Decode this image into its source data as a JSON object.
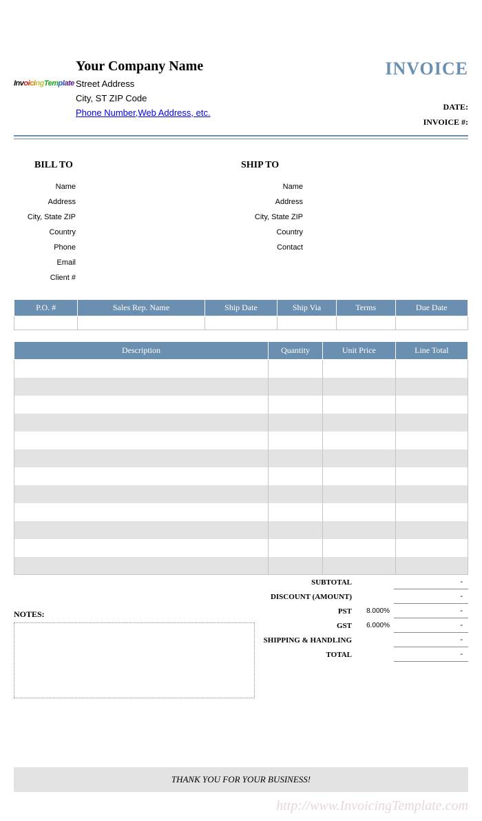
{
  "colors": {
    "accent": "#6a8fb0",
    "row_alt": "#e3e3e3",
    "border": "#c4c4c4",
    "link": "#0000ee",
    "watermark": "#e8d4e0"
  },
  "header": {
    "logo_text": "InvoicingTemplate",
    "company_name": "Your Company Name",
    "street": "Street Address",
    "city": "City, ST  ZIP Code",
    "contact_link": "Phone Number,Web Address, etc.",
    "invoice_title": "INVOICE",
    "date_label": "DATE:",
    "number_label": "INVOICE #:"
  },
  "bill": {
    "title": "BILL TO",
    "fields": [
      "Name",
      "Address",
      "City, State ZIP",
      "Country",
      "Phone",
      "Email",
      "Client #"
    ]
  },
  "ship": {
    "title": "SHIP TO",
    "fields": [
      "Name",
      "Address",
      "City, State ZIP",
      "Country",
      "Contact"
    ]
  },
  "order_table": {
    "columns": [
      "P.O. #",
      "Sales Rep. Name",
      "Ship Date",
      "Ship Via",
      "Terms",
      "Due Date"
    ],
    "widths": [
      "14%",
      "28%",
      "16%",
      "13%",
      "13%",
      "16%"
    ]
  },
  "items_table": {
    "columns": [
      "Description",
      "Quantity",
      "Unit Price",
      "Line Total"
    ],
    "widths": [
      "56%",
      "12%",
      "16%",
      "16%"
    ],
    "row_count": 12
  },
  "notes": {
    "label": "NOTES:"
  },
  "totals": [
    {
      "label": "SUBTOTAL",
      "rate": "",
      "value": "-"
    },
    {
      "label": "DISCOUNT (AMOUNT)",
      "rate": "",
      "value": "-"
    },
    {
      "label": "PST",
      "rate": "8.000%",
      "value": "-"
    },
    {
      "label": "GST",
      "rate": "6.000%",
      "value": "-"
    },
    {
      "label": "SHIPPING & HANDLING",
      "rate": "",
      "value": "-"
    },
    {
      "label": "TOTAL",
      "rate": "",
      "value": "-"
    }
  ],
  "thank_you": "THANK YOU FOR YOUR BUSINESS!",
  "watermark": "http://www.InvoicingTemplate.com"
}
